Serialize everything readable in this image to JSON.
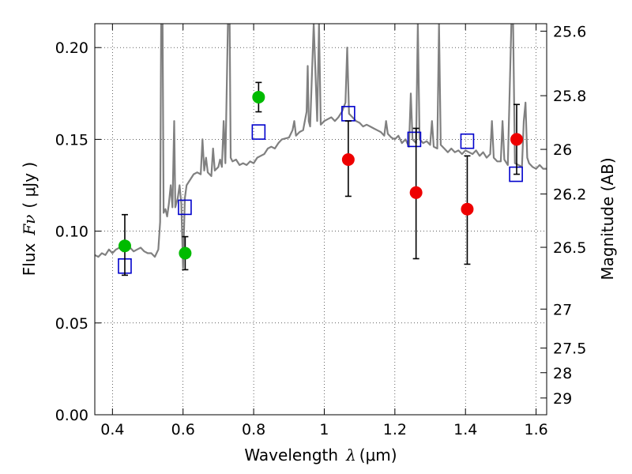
{
  "chart_data": {
    "type": "scatter",
    "xlabel_text": "Wavelength",
    "xlabel_symbol": "λ",
    "xlabel_unit": "(μm)",
    "ylabel_text": "Flux",
    "ylabel_symbol": "Fν",
    "ylabel_unit": "( μJy )",
    "ylabel_right": "Magnitude (AB)",
    "xlim": [
      0.35,
      1.63
    ],
    "ylim": [
      0.0,
      0.213
    ],
    "grid": true,
    "x_ticks": [
      {
        "value": 0.4,
        "label": "0.4"
      },
      {
        "value": 0.6,
        "label": "0.6"
      },
      {
        "value": 0.8,
        "label": "0.8"
      },
      {
        "value": 1.0,
        "label": "1"
      },
      {
        "value": 1.2,
        "label": "1.2"
      },
      {
        "value": 1.4,
        "label": "1.4"
      },
      {
        "value": 1.6,
        "label": "1.6"
      }
    ],
    "y_ticks": [
      {
        "value": 0.0,
        "label": "0.00"
      },
      {
        "value": 0.05,
        "label": "0.05"
      },
      {
        "value": 0.1,
        "label": "0.10"
      },
      {
        "value": 0.15,
        "label": "0.15"
      },
      {
        "value": 0.2,
        "label": "0.20"
      }
    ],
    "mag_ticks": [
      {
        "value": 25.6,
        "label": "25.6"
      },
      {
        "value": 25.8,
        "label": "25.8"
      },
      {
        "value": 26.0,
        "label": "26"
      },
      {
        "value": 26.2,
        "label": "26.2"
      },
      {
        "value": 26.5,
        "label": "26.5"
      },
      {
        "value": 27.0,
        "label": "27"
      },
      {
        "value": 27.5,
        "label": "27.5"
      },
      {
        "value": 28.0,
        "label": "28"
      },
      {
        "value": 29.0,
        "label": "29"
      }
    ],
    "series": [
      {
        "kind": "model-spectrum",
        "color": "#808080",
        "points": [
          [
            0.35,
            0.087
          ],
          [
            0.36,
            0.086
          ],
          [
            0.37,
            0.088
          ],
          [
            0.38,
            0.087
          ],
          [
            0.39,
            0.09
          ],
          [
            0.4,
            0.088
          ],
          [
            0.41,
            0.09
          ],
          [
            0.42,
            0.091
          ],
          [
            0.43,
            0.089
          ],
          [
            0.44,
            0.09
          ],
          [
            0.45,
            0.091
          ],
          [
            0.46,
            0.089
          ],
          [
            0.47,
            0.09
          ],
          [
            0.48,
            0.091
          ],
          [
            0.49,
            0.089
          ],
          [
            0.5,
            0.088
          ],
          [
            0.51,
            0.088
          ],
          [
            0.52,
            0.086
          ],
          [
            0.53,
            0.09
          ],
          [
            0.535,
            0.105
          ],
          [
            0.538,
            0.213
          ],
          [
            0.542,
            0.213
          ],
          [
            0.545,
            0.11
          ],
          [
            0.55,
            0.112
          ],
          [
            0.555,
            0.108
          ],
          [
            0.56,
            0.115
          ],
          [
            0.565,
            0.125
          ],
          [
            0.57,
            0.113
          ],
          [
            0.575,
            0.16
          ],
          [
            0.578,
            0.113
          ],
          [
            0.585,
            0.118
          ],
          [
            0.59,
            0.125
          ],
          [
            0.595,
            0.115
          ],
          [
            0.6,
            0.08
          ],
          [
            0.605,
            0.118
          ],
          [
            0.61,
            0.125
          ],
          [
            0.62,
            0.128
          ],
          [
            0.63,
            0.131
          ],
          [
            0.64,
            0.132
          ],
          [
            0.65,
            0.131
          ],
          [
            0.655,
            0.15
          ],
          [
            0.66,
            0.133
          ],
          [
            0.665,
            0.14
          ],
          [
            0.67,
            0.132
          ],
          [
            0.68,
            0.13
          ],
          [
            0.685,
            0.145
          ],
          [
            0.69,
            0.133
          ],
          [
            0.7,
            0.135
          ],
          [
            0.705,
            0.139
          ],
          [
            0.71,
            0.135
          ],
          [
            0.715,
            0.16
          ],
          [
            0.72,
            0.137
          ],
          [
            0.727,
            0.213
          ],
          [
            0.732,
            0.213
          ],
          [
            0.735,
            0.14
          ],
          [
            0.74,
            0.138
          ],
          [
            0.75,
            0.139
          ],
          [
            0.76,
            0.136
          ],
          [
            0.77,
            0.137
          ],
          [
            0.78,
            0.136
          ],
          [
            0.79,
            0.138
          ],
          [
            0.8,
            0.137
          ],
          [
            0.81,
            0.14
          ],
          [
            0.82,
            0.141
          ],
          [
            0.83,
            0.142
          ],
          [
            0.84,
            0.145
          ],
          [
            0.85,
            0.146
          ],
          [
            0.86,
            0.145
          ],
          [
            0.87,
            0.148
          ],
          [
            0.88,
            0.15
          ],
          [
            0.9,
            0.151
          ],
          [
            0.91,
            0.155
          ],
          [
            0.915,
            0.16
          ],
          [
            0.92,
            0.152
          ],
          [
            0.93,
            0.154
          ],
          [
            0.94,
            0.155
          ],
          [
            0.95,
            0.165
          ],
          [
            0.953,
            0.19
          ],
          [
            0.956,
            0.16
          ],
          [
            0.96,
            0.157
          ],
          [
            0.97,
            0.213
          ],
          [
            0.98,
            0.16
          ],
          [
            0.985,
            0.213
          ],
          [
            0.99,
            0.158
          ],
          [
            1.0,
            0.16
          ],
          [
            1.01,
            0.161
          ],
          [
            1.02,
            0.162
          ],
          [
            1.03,
            0.16
          ],
          [
            1.04,
            0.162
          ],
          [
            1.05,
            0.165
          ],
          [
            1.06,
            0.17
          ],
          [
            1.065,
            0.2
          ],
          [
            1.07,
            0.164
          ],
          [
            1.08,
            0.162
          ],
          [
            1.09,
            0.16
          ],
          [
            1.1,
            0.159
          ],
          [
            1.11,
            0.157
          ],
          [
            1.12,
            0.158
          ],
          [
            1.13,
            0.157
          ],
          [
            1.14,
            0.156
          ],
          [
            1.15,
            0.155
          ],
          [
            1.16,
            0.154
          ],
          [
            1.17,
            0.152
          ],
          [
            1.175,
            0.16
          ],
          [
            1.18,
            0.153
          ],
          [
            1.19,
            0.151
          ],
          [
            1.2,
            0.15
          ],
          [
            1.21,
            0.152
          ],
          [
            1.22,
            0.148
          ],
          [
            1.23,
            0.15
          ],
          [
            1.24,
            0.146
          ],
          [
            1.245,
            0.175
          ],
          [
            1.25,
            0.15
          ],
          [
            1.26,
            0.148
          ],
          [
            1.265,
            0.213
          ],
          [
            1.27,
            0.15
          ],
          [
            1.28,
            0.148
          ],
          [
            1.29,
            0.149
          ],
          [
            1.3,
            0.147
          ],
          [
            1.305,
            0.16
          ],
          [
            1.31,
            0.146
          ],
          [
            1.32,
            0.145
          ],
          [
            1.325,
            0.213
          ],
          [
            1.33,
            0.147
          ],
          [
            1.34,
            0.145
          ],
          [
            1.35,
            0.143
          ],
          [
            1.36,
            0.145
          ],
          [
            1.37,
            0.143
          ],
          [
            1.38,
            0.144
          ],
          [
            1.39,
            0.142
          ],
          [
            1.4,
            0.144
          ],
          [
            1.41,
            0.143
          ],
          [
            1.42,
            0.142
          ],
          [
            1.43,
            0.144
          ],
          [
            1.44,
            0.141
          ],
          [
            1.45,
            0.143
          ],
          [
            1.46,
            0.14
          ],
          [
            1.47,
            0.142
          ],
          [
            1.475,
            0.16
          ],
          [
            1.48,
            0.14
          ],
          [
            1.49,
            0.138
          ],
          [
            1.5,
            0.138
          ],
          [
            1.505,
            0.16
          ],
          [
            1.51,
            0.139
          ],
          [
            1.52,
            0.136
          ],
          [
            1.53,
            0.213
          ],
          [
            1.535,
            0.213
          ],
          [
            1.54,
            0.137
          ],
          [
            1.55,
            0.136
          ],
          [
            1.56,
            0.135
          ],
          [
            1.565,
            0.16
          ],
          [
            1.57,
            0.17
          ],
          [
            1.575,
            0.14
          ],
          [
            1.58,
            0.137
          ],
          [
            1.59,
            0.135
          ],
          [
            1.6,
            0.134
          ],
          [
            1.61,
            0.136
          ],
          [
            1.62,
            0.134
          ],
          [
            1.63,
            0.134
          ]
        ]
      },
      {
        "kind": "model-photometry",
        "marker": "open-square",
        "color": "#0000cc",
        "points": [
          [
            0.435,
            0.081
          ],
          [
            0.605,
            0.113
          ],
          [
            0.814,
            0.154
          ],
          [
            1.068,
            0.164
          ],
          [
            1.255,
            0.15
          ],
          [
            1.405,
            0.149
          ],
          [
            1.543,
            0.131
          ]
        ]
      },
      {
        "kind": "observed-detection",
        "marker": "filled-circle",
        "color": "#00bb00",
        "points": [
          {
            "x": 0.435,
            "y": 0.092,
            "lo": 0.076,
            "hi": 0.109
          },
          {
            "x": 0.606,
            "y": 0.088,
            "lo": 0.079,
            "hi": 0.097
          },
          {
            "x": 0.814,
            "y": 0.173,
            "lo": 0.165,
            "hi": 0.181
          }
        ]
      },
      {
        "kind": "observed-low-sn",
        "marker": "filled-circle",
        "color": "#ee0000",
        "points": [
          {
            "x": 1.068,
            "y": 0.139,
            "lo": 0.119,
            "hi": 0.16
          },
          {
            "x": 1.26,
            "y": 0.121,
            "lo": 0.085,
            "hi": 0.156
          },
          {
            "x": 1.405,
            "y": 0.112,
            "lo": 0.082,
            "hi": 0.141
          },
          {
            "x": 1.545,
            "y": 0.15,
            "lo": 0.131,
            "hi": 0.169
          }
        ]
      }
    ]
  }
}
